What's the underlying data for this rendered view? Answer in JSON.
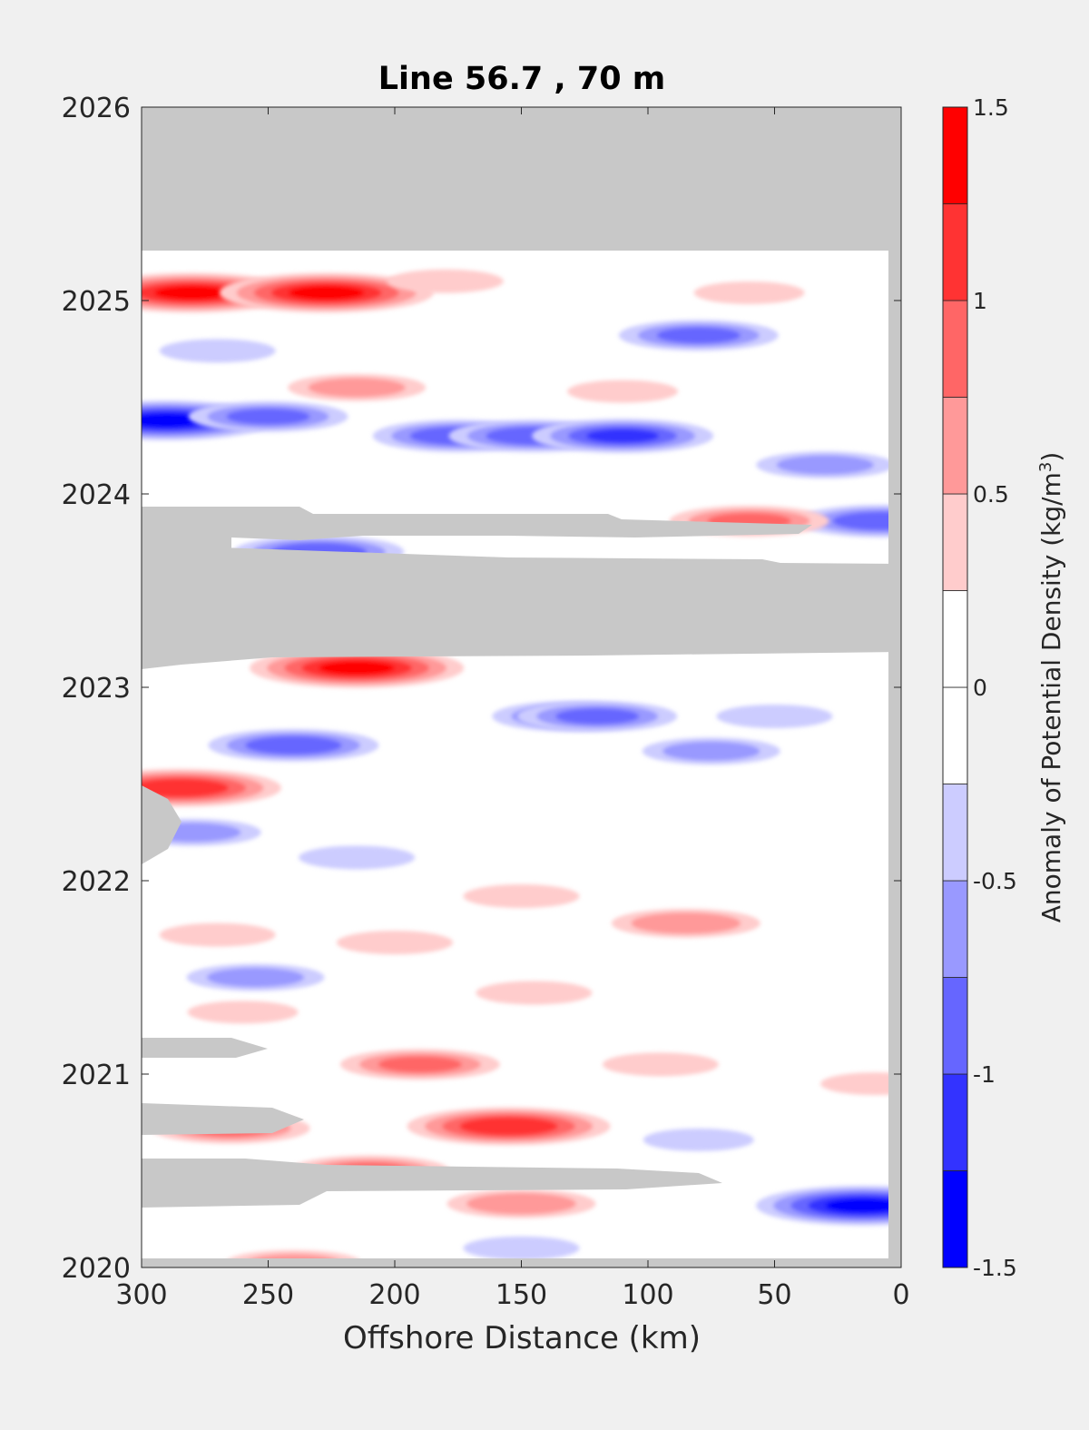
{
  "chart_data": {
    "type": "heatmap",
    "title": "Line 56.7 , 70 m",
    "xlabel": "Offshore Distance (km)",
    "ylabel": "",
    "x_ticks": [
      "300",
      "250",
      "200",
      "150",
      "100",
      "50",
      "0"
    ],
    "x_tick_values": [
      300,
      250,
      200,
      150,
      100,
      50,
      0
    ],
    "xlim": [
      300,
      0
    ],
    "y_ticks": [
      "2020",
      "2021",
      "2022",
      "2023",
      "2024",
      "2025",
      "2026"
    ],
    "y_tick_values": [
      2020,
      2021,
      2022,
      2023,
      2024,
      2025,
      2026
    ],
    "ylim": [
      2020,
      2026
    ],
    "colorbar": {
      "label": "Anomaly of Potential Density (kg/m",
      "label_superscript": "3",
      "label_end": ")",
      "tick_labels": [
        "1.5",
        "1",
        "0.5",
        "0",
        "-0.5",
        "-1",
        "-1.5"
      ],
      "tick_values": [
        1.5,
        1.0,
        0.5,
        0.0,
        -0.5,
        -1.0,
        -1.5
      ],
      "levels": [
        -1.5,
        -1.25,
        -1.0,
        -0.75,
        -0.5,
        -0.25,
        0.0,
        0.25,
        0.5,
        0.75,
        1.0,
        1.25,
        1.5
      ],
      "colors": [
        "#0000ff",
        "#3333ff",
        "#6666ff",
        "#9999ff",
        "#ccccff",
        "#ffffff",
        "#ffffff",
        "#ffcccc",
        "#ff9999",
        "#ff6666",
        "#ff3333",
        "#ff0000"
      ]
    },
    "nodata_color": "#c8c8c8",
    "anomalies": [
      {
        "x": 280,
        "y": 2025.04,
        "value": 1.3
      },
      {
        "x": 227,
        "y": 2025.04,
        "value": 1.3
      },
      {
        "x": 180,
        "y": 2025.1,
        "value": 0.4
      },
      {
        "x": 60,
        "y": 2025.04,
        "value": 0.35
      },
      {
        "x": 80,
        "y": 2024.82,
        "value": -0.8
      },
      {
        "x": 270,
        "y": 2024.74,
        "value": -0.4
      },
      {
        "x": 215,
        "y": 2024.55,
        "value": 0.6
      },
      {
        "x": 110,
        "y": 2024.53,
        "value": 0.35
      },
      {
        "x": 290,
        "y": 2024.38,
        "value": -1.3
      },
      {
        "x": 250,
        "y": 2024.4,
        "value": -0.8
      },
      {
        "x": 175,
        "y": 2024.3,
        "value": -0.9
      },
      {
        "x": 145,
        "y": 2024.3,
        "value": -0.9
      },
      {
        "x": 110,
        "y": 2024.3,
        "value": -1.0
      },
      {
        "x": 30,
        "y": 2024.15,
        "value": -0.6
      },
      {
        "x": 8,
        "y": 2023.86,
        "value": -0.9
      },
      {
        "x": 60,
        "y": 2023.86,
        "value": 0.8
      },
      {
        "x": 230,
        "y": 2023.7,
        "value": -0.9
      },
      {
        "x": 215,
        "y": 2023.1,
        "value": 1.3
      },
      {
        "x": 130,
        "y": 2022.85,
        "value": -0.8
      },
      {
        "x": 120,
        "y": 2022.85,
        "value": -0.8
      },
      {
        "x": 50,
        "y": 2022.85,
        "value": -0.4
      },
      {
        "x": 240,
        "y": 2022.7,
        "value": -0.9
      },
      {
        "x": 75,
        "y": 2022.67,
        "value": -0.6
      },
      {
        "x": 285,
        "y": 2022.48,
        "value": 1.2
      },
      {
        "x": 280,
        "y": 2022.25,
        "value": -0.6
      },
      {
        "x": 215,
        "y": 2022.12,
        "value": -0.4
      },
      {
        "x": 150,
        "y": 2021.92,
        "value": 0.4
      },
      {
        "x": 85,
        "y": 2021.78,
        "value": 0.7
      },
      {
        "x": 270,
        "y": 2021.72,
        "value": 0.4
      },
      {
        "x": 200,
        "y": 2021.68,
        "value": 0.4
      },
      {
        "x": 255,
        "y": 2021.5,
        "value": -0.6
      },
      {
        "x": 145,
        "y": 2021.42,
        "value": 0.4
      },
      {
        "x": 260,
        "y": 2021.32,
        "value": 0.35
      },
      {
        "x": 190,
        "y": 2021.05,
        "value": 0.8
      },
      {
        "x": 95,
        "y": 2021.05,
        "value": 0.4
      },
      {
        "x": 10,
        "y": 2020.95,
        "value": 0.35
      },
      {
        "x": 155,
        "y": 2020.73,
        "value": 1.2
      },
      {
        "x": 265,
        "y": 2020.72,
        "value": 0.8
      },
      {
        "x": 80,
        "y": 2020.66,
        "value": -0.35
      },
      {
        "x": 210,
        "y": 2020.5,
        "value": 0.8
      },
      {
        "x": 150,
        "y": 2020.33,
        "value": 0.7
      },
      {
        "x": 15,
        "y": 2020.32,
        "value": -1.3
      },
      {
        "x": 150,
        "y": 2020.1,
        "value": -0.4
      },
      {
        "x": 240,
        "y": 2020.02,
        "value": 0.6
      }
    ]
  }
}
